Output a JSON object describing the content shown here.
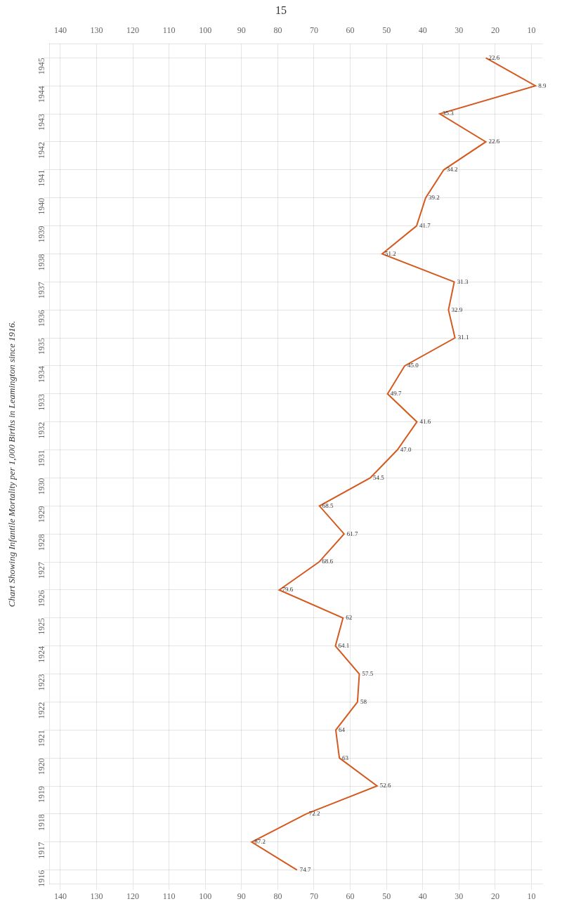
{
  "chart_data": {
    "type": "line",
    "title": "Chart Showing Infantile Mortality per 1,000 Births in Leamington since 1916.",
    "annotations": [
      "15"
    ],
    "orientation": "horizontal",
    "categories": [
      "1916",
      "1917",
      "1918",
      "1919",
      "1920",
      "1921",
      "1922",
      "1923",
      "1924",
      "1925",
      "1926",
      "1927",
      "1928",
      "1929",
      "1930",
      "1931",
      "1932",
      "1933",
      "1934",
      "1935",
      "1936",
      "1937",
      "1938",
      "1939",
      "1940",
      "1941",
      "1942",
      "1943",
      "1944",
      "1945"
    ],
    "values": [
      74.7,
      87.2,
      72.2,
      52.6,
      63.0,
      64.0,
      58.0,
      57.5,
      64.1,
      62.0,
      79.6,
      68.6,
      61.7,
      68.5,
      54.5,
      47.0,
      41.6,
      49.7,
      45.0,
      31.1,
      32.9,
      31.3,
      51.2,
      41.7,
      39.2,
      34.2,
      22.6,
      35.3,
      8.9,
      22.6
    ],
    "value_labels": [
      "74.7",
      "87.2",
      "72.2",
      "52.6",
      "63",
      "64",
      "58",
      "57.5",
      "64.1",
      "62",
      "79.6",
      "68.6",
      "61.7",
      "68.5",
      "54.5",
      "47.0",
      "41.6",
      "49.7",
      "45.0",
      "31.1",
      "32.9",
      "31.3",
      "51.2",
      "41.7",
      "39.2",
      "34.2",
      "22.6",
      "35.3",
      "8.9",
      "22.6"
    ],
    "data_labels": true,
    "color": "#D45A20",
    "xlim": [
      143,
      7
    ],
    "xticks": [
      10,
      20,
      30,
      40,
      50,
      60,
      70,
      80,
      90,
      100,
      110,
      120,
      130,
      140
    ],
    "grid": true
  }
}
